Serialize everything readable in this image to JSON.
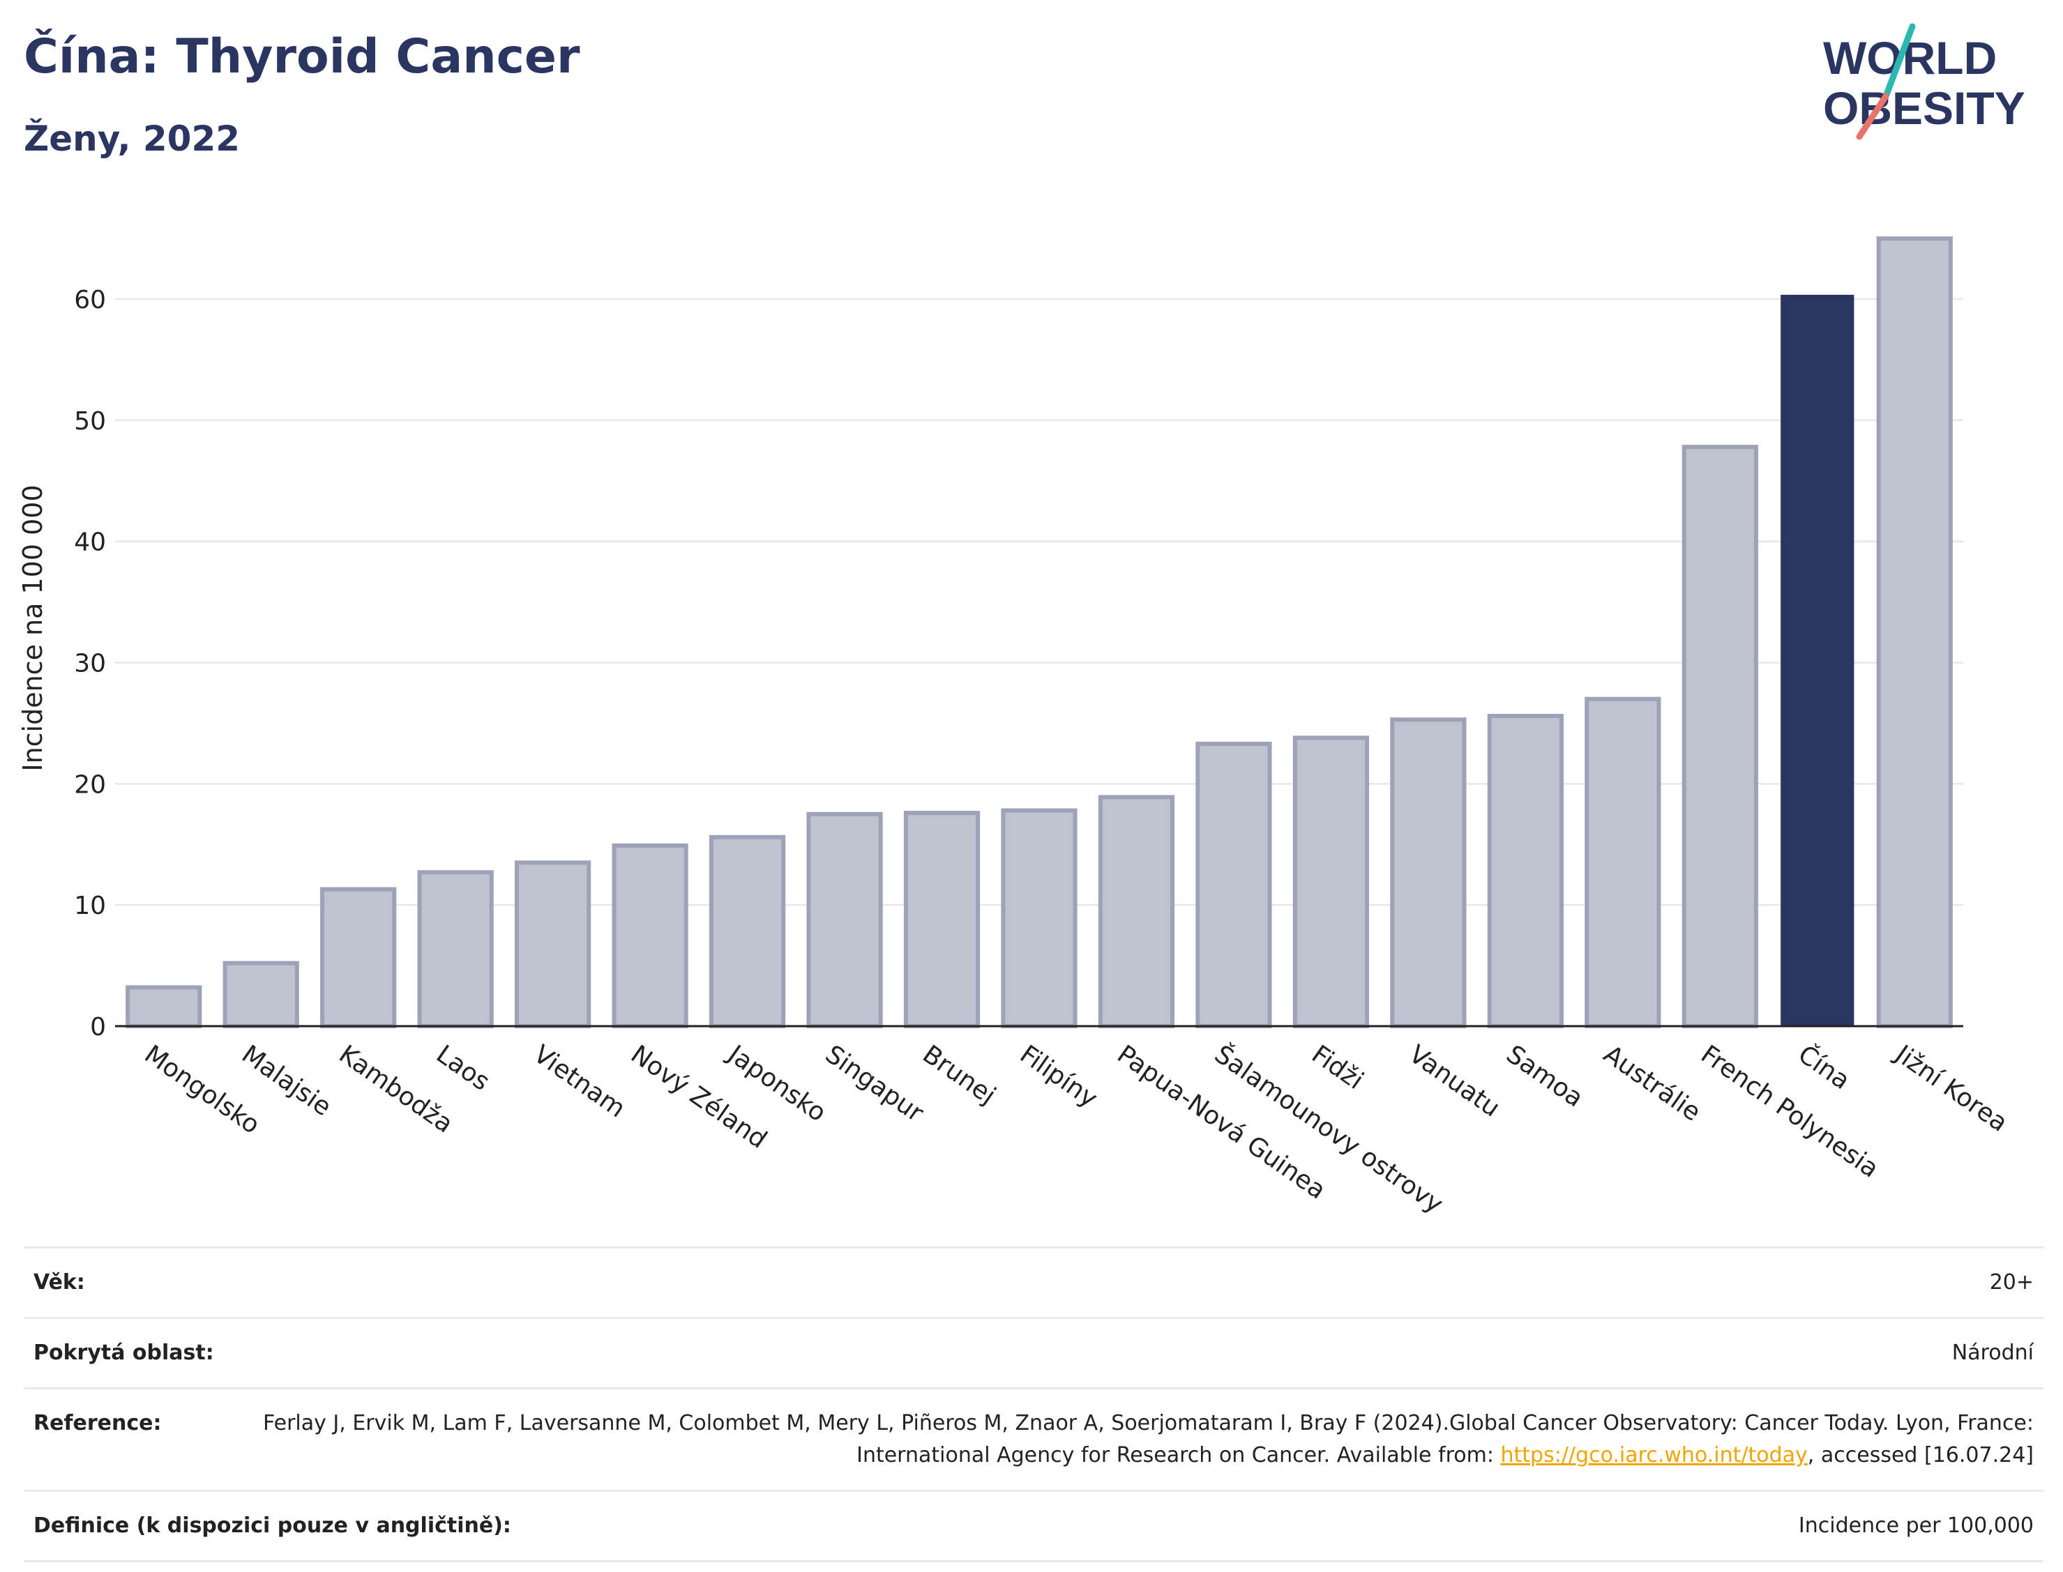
{
  "header": {
    "title": "Čína: Thyroid Cancer",
    "subtitle": "Ženy, 2022"
  },
  "logo": {
    "line1": "WORLD",
    "line2": "OBESITY"
  },
  "colors": {
    "highlight": "#2a3561",
    "bar_fill": "#bfc3d0",
    "bar_stroke": "#9da2b9",
    "brand_teal": "#2ab8b0",
    "brand_coral": "#e8736b",
    "link": "#f0a500"
  },
  "chart_data": {
    "type": "bar",
    "ylabel": "Incidence na 100 000",
    "xlabel": "",
    "ylim": [
      0,
      68
    ],
    "yticks": [
      0,
      10,
      20,
      30,
      40,
      50,
      60
    ],
    "grid": true,
    "highlight_category": "Čína",
    "categories": [
      "Mongolsko",
      "Malajsie",
      "Kambodža",
      "Laos",
      "Vietnam",
      "Nový Zéland",
      "Japonsko",
      "Singapur",
      "Brunej",
      "Filipíny",
      "Papua-Nová Guinea",
      "Šalamounovy ostrovy",
      "Fidži",
      "Vanuatu",
      "Samoa",
      "Austrálie",
      "French Polynesia",
      "Čína",
      "Jižní Korea"
    ],
    "values": [
      3.2,
      5.2,
      11.3,
      12.7,
      13.5,
      14.9,
      15.6,
      17.5,
      17.6,
      17.8,
      18.9,
      23.3,
      23.8,
      25.3,
      25.6,
      27.0,
      47.8,
      60.3,
      65.0
    ]
  },
  "info_table": [
    {
      "label": "Věk:",
      "value": "20+"
    },
    {
      "label": "Pokrytá oblast:",
      "value": "Národní"
    },
    {
      "label": "Reference:",
      "value_before": "Ferlay J, Ervik M, Lam F, Laversanne M, Colombet M, Mery L, Piñeros M, Znaor A, Soerjomataram I, Bray F (2024).Global Cancer Observatory: Cancer Today. Lyon, France: International Agency for Research on Cancer. Available from: ",
      "link": "https://gco.iarc.who.int/today",
      "value_after": ", accessed [16.07.24]"
    },
    {
      "label": "Definice (k dispozici pouze v angličtině):",
      "value": "Incidence per 100,000"
    }
  ]
}
